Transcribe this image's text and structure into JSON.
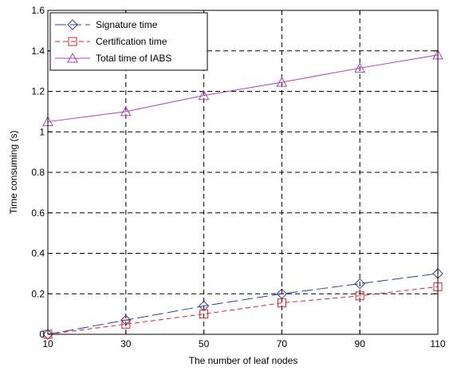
{
  "chart_data": {
    "type": "line",
    "x": [
      10,
      30,
      50,
      70,
      90,
      110
    ],
    "xticks": [
      "10",
      "30",
      "50",
      "70",
      "90",
      "110"
    ],
    "yticks": [
      "0",
      "0.2",
      "0.4",
      "0.6",
      "0.8",
      "1",
      "1.2",
      "1.4",
      "1.6"
    ],
    "xlim": [
      10,
      110
    ],
    "ylim": [
      0,
      1.6
    ],
    "xlabel": "The number of leaf nodes",
    "ylabel": "Time consuming (s)",
    "grid": true,
    "legend_position": "top-left",
    "series": [
      {
        "name": "Signature time",
        "values": [
          0,
          0.07,
          0.14,
          0.2,
          0.25,
          0.3
        ],
        "color": "#2b3f9e",
        "marker": "diamond",
        "line_style": "long-dash"
      },
      {
        "name": "Certification time",
        "values": [
          0,
          0.05,
          0.1,
          0.155,
          0.19,
          0.235
        ],
        "color": "#e8202a",
        "marker": "square",
        "line_style": "dashed"
      },
      {
        "name": "Total time of IABS",
        "values": [
          1.05,
          1.1,
          1.18,
          1.245,
          1.315,
          1.38
        ],
        "color": "#b43cb4",
        "marker": "triangle",
        "line_style": "solid"
      }
    ]
  }
}
